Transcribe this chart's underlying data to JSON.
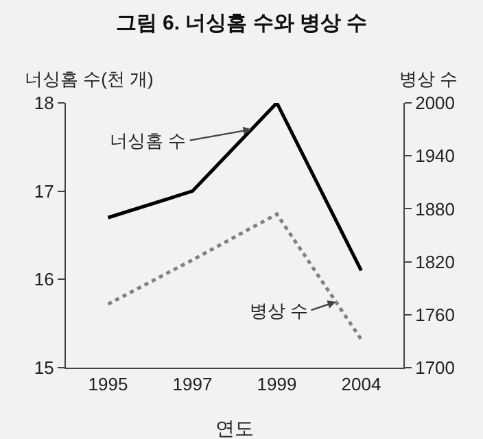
{
  "chart_data": {
    "type": "line",
    "title": "그림 6. 너싱홈 수와 병상 수",
    "xlabel": "연도",
    "ylabel": "너싱홈 수(천 개)",
    "y2label": "병상 수",
    "categories": [
      "1995",
      "1997",
      "1999",
      "2004"
    ],
    "series": [
      {
        "name": "너싱홈 수",
        "color": "#000000",
        "line_style": "solid",
        "values": [
          16.7,
          17.0,
          18.0,
          16.1
        ]
      },
      {
        "name": "병상 수",
        "color": "#808080",
        "line_style": "dotted",
        "axis": "y2",
        "values": [
          1772,
          1822,
          1874,
          1732
        ]
      }
    ],
    "ylim": [
      15,
      18
    ],
    "yticks": [
      15,
      16,
      17,
      18
    ],
    "y2lim": [
      1700,
      2000
    ],
    "y2ticks": [
      1700,
      1760,
      1820,
      1880,
      1940,
      2000
    ],
    "grid": false,
    "legend": false,
    "marker": "none"
  }
}
